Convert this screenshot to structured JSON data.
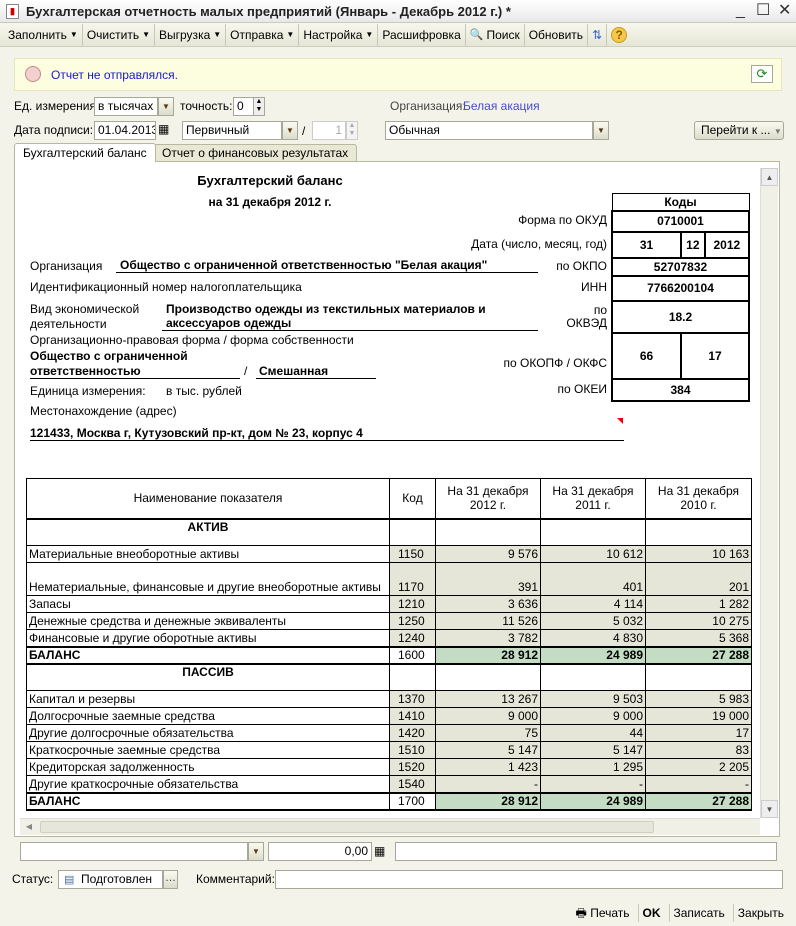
{
  "window": {
    "title": "Бухгалтерская отчетность малых предприятий (Январь - Декабрь 2012 г.) *"
  },
  "toolbar": [
    {
      "label": "Заполнить",
      "dd": true
    },
    {
      "label": "Очистить",
      "dd": true
    },
    {
      "label": "Выгрузка",
      "dd": true
    },
    {
      "label": "Отправка",
      "dd": true
    },
    {
      "label": "Настройка",
      "dd": true
    },
    {
      "label": "Расшифровка",
      "dd": false
    },
    {
      "label": "Поиск",
      "dd": false,
      "icon": "search"
    },
    {
      "label": "Обновить",
      "dd": false
    }
  ],
  "info": {
    "message": "Отчет не отправлялся."
  },
  "form": {
    "unit_label": "Ед. измерения:",
    "unit_value": "в тысячах р",
    "precision_label": "точность:",
    "precision_value": "0",
    "org_label": "Организация:",
    "org_value": "Белая акация",
    "sign_date_label": "Дата подписи:",
    "sign_date": "01.04.2013",
    "report_kind": "Первичный",
    "correction_num": "1",
    "mode": "Обычная",
    "goto_label": "Перейти к ..."
  },
  "tabs": [
    {
      "label": "Бухгалтерский баланс",
      "active": true
    },
    {
      "label": "Отчет о финансовых результатах",
      "active": false
    }
  ],
  "report": {
    "title": "Бухгалтерский баланс",
    "date": "на 31 декабря 2012 г.",
    "codes_header": "Коды",
    "okud_label": "Форма по ОКУД",
    "okud": "0710001",
    "date_label": "Дата (число, месяц, год)",
    "day": "31",
    "month": "12",
    "year": "2012",
    "org_label": "Организация",
    "org_name": "Общество с ограниченной ответственностью \"Белая акация\"",
    "okpo_label": "по ОКПО",
    "okpo": "52707832",
    "inn_text": "Идентификационный номер налогоплательщика",
    "inn_label": "ИНН",
    "inn": "7766200104",
    "activity_label1": "Вид экономической",
    "activity_label2": "деятельности",
    "activity1": "Производство одежды из текстильных материалов и",
    "activity2": "аксессуаров одежды",
    "okved_label1": "по",
    "okved_label2": "ОКВЭД",
    "okved": "18.2",
    "legal_label": "Организационно-правовая форма / форма собственности",
    "legal1": "Общество с ограниченной",
    "legal2": "ответственностью",
    "slash": "/",
    "ownership": "Смешанная",
    "okopf_label": "по ОКОПФ / ОКФС",
    "okopf": "66",
    "okfs": "17",
    "unit_label": "Единица измерения:",
    "unit": "в тыс. рублей",
    "okei_label": "по ОКЕИ",
    "okei": "384",
    "address_label": "Местонахождение (адрес)",
    "address": "121433, Москва г, Кутузовский пр-кт, дом № 23, корпус 4"
  },
  "table": {
    "headers": [
      "Наименование показателя",
      "Код",
      "На 31 декабря 2012 г.",
      "На 31 декабря 2011 г.",
      "На 31 декабря 2010 г."
    ],
    "rows": [
      {
        "type": "sec",
        "name": "АКТИВ"
      },
      {
        "name": "Материальные внеоборотные активы",
        "code": "1150",
        "v": [
          "9 576",
          "10 612",
          "10 163"
        ]
      },
      {
        "name": "Нематериальные, финансовые и другие внеоборотные активы",
        "code": "1170",
        "v": [
          "391",
          "401",
          "201"
        ]
      },
      {
        "name": "Запасы",
        "code": "1210",
        "v": [
          "3 636",
          "4 114",
          "1 282"
        ]
      },
      {
        "name": "Денежные средства и денежные эквиваленты",
        "code": "1250",
        "v": [
          "11 526",
          "5 032",
          "10 275"
        ]
      },
      {
        "name": "Финансовые и другие оборотные активы",
        "code": "1240",
        "v": [
          "3 782",
          "4 830",
          "5 368"
        ]
      },
      {
        "type": "sum",
        "name": "БАЛАНС",
        "code": "1600",
        "v": [
          "28 912",
          "24 989",
          "27 288"
        ]
      },
      {
        "type": "sec",
        "name": "ПАССИВ"
      },
      {
        "name": "Капитал и резервы",
        "code": "1370",
        "v": [
          "13 267",
          "9 503",
          "5 983"
        ]
      },
      {
        "name": "Долгосрочные заемные средства",
        "code": "1410",
        "v": [
          "9 000",
          "9 000",
          "19 000"
        ]
      },
      {
        "name": "Другие долгосрочные обязательства",
        "code": "1420",
        "v": [
          "75",
          "44",
          "17"
        ]
      },
      {
        "name": "Краткосрочные заемные средства",
        "code": "1510",
        "v": [
          "5 147",
          "5 147",
          "83"
        ]
      },
      {
        "name": "Кредиторская задолженность",
        "code": "1520",
        "v": [
          "1 423",
          "1 295",
          "2 205"
        ]
      },
      {
        "name": "Другие краткосрочные обязательства",
        "code": "1540",
        "v": [
          "-",
          "-",
          "-"
        ]
      },
      {
        "type": "sum",
        "name": "БАЛАНС",
        "code": "1700",
        "v": [
          "28 912",
          "24 989",
          "27 288"
        ]
      }
    ]
  },
  "bottom": {
    "sum_value": "0,00",
    "status_label": "Статус:",
    "status_value": "Подготовлен",
    "comment_label": "Комментарий:"
  },
  "footer": {
    "print": "Печать",
    "ok": "OK",
    "save": "Записать",
    "close": "Закрыть"
  }
}
